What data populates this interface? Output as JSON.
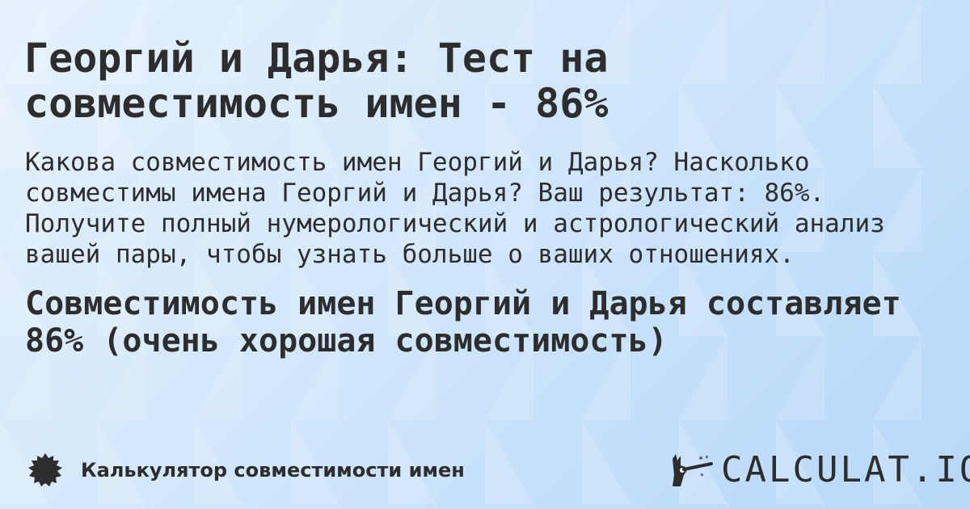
{
  "title": "Георгий и Дарья: Тест на совместимость имен - 86%",
  "description": "Какова совместимость имен Георгий и Дарья? Насколько совместимы имена Георгий и Дарья? Ваш результат: 86%. Получите полный нумерологический и астрологический анализ вашей пары, чтобы узнать больше о ваших отношениях.",
  "result": "Совместимость имен Георгий и Дарья составляет 86% (очень хорошая совместимость)",
  "footer": {
    "label": "Калькулятор совместимости имен",
    "icon": "badge-icon"
  },
  "logo": {
    "text": "CALCULAT.IO",
    "icon": "magic-hand-icon"
  }
}
